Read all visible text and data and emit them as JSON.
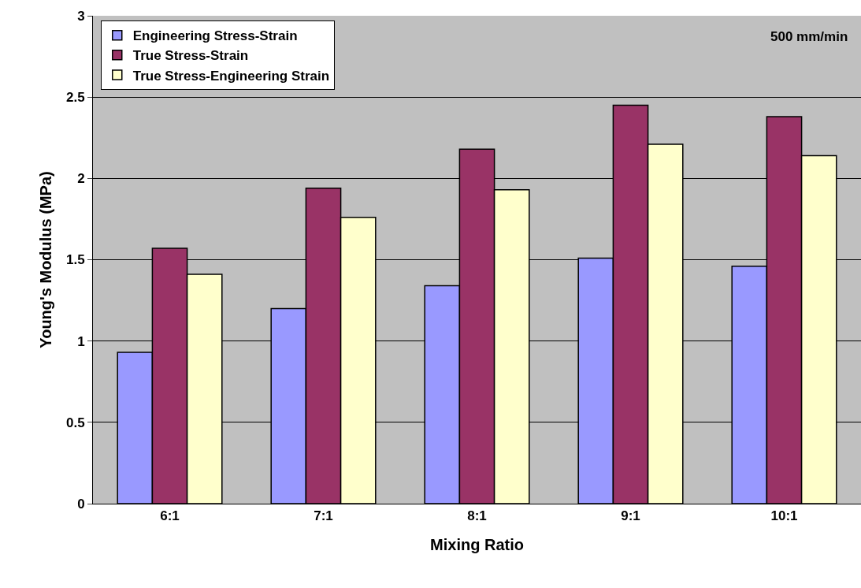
{
  "chart_data": {
    "type": "bar",
    "xlabel": "Mixing Ratio",
    "ylabel": "Young's Modulus (MPa)",
    "categories": [
      "6:1",
      "7:1",
      "8:1",
      "9:1",
      "10:1"
    ],
    "series": [
      {
        "name": "Engineering Stress-Strain",
        "color": "#9999ff",
        "values": [
          0.93,
          1.2,
          1.34,
          1.51,
          1.46
        ]
      },
      {
        "name": "True Stress-Strain",
        "color": "#993366",
        "values": [
          1.57,
          1.94,
          2.18,
          2.45,
          2.38
        ]
      },
      {
        "name": "True Stress-Engineering Strain",
        "color": "#ffffcc",
        "values": [
          1.41,
          1.76,
          1.93,
          2.21,
          2.14
        ]
      }
    ],
    "ylim": [
      0,
      3
    ],
    "yticks": [
      0,
      0.5,
      1,
      1.5,
      2,
      2.5,
      3
    ],
    "grid": "y",
    "legend": "top left",
    "annotations": [
      "500 mm/min"
    ]
  }
}
